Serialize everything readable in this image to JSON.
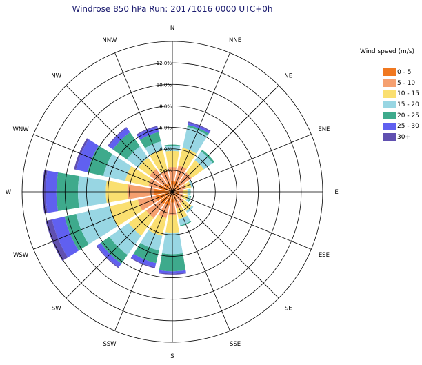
{
  "chart_data": {
    "type": "windrose",
    "title": "Windrose 850 hPa Run: 20171016 0000 UTC+0h",
    "directions": [
      "N",
      "NNE",
      "NE",
      "ENE",
      "E",
      "ESE",
      "SE",
      "SSE",
      "S",
      "SSW",
      "SW",
      "WSW",
      "W",
      "WNW",
      "NW",
      "NNW"
    ],
    "radial_ticks": [
      "2.0%",
      "4.0%",
      "6.0%",
      "8.0%",
      "10.0%",
      "12.0%"
    ],
    "radial_max": 14,
    "legend_title": "Wind speed (m/s)",
    "bins": [
      "0 - 5",
      "5 - 10",
      "10 - 15",
      "15 - 20",
      "20 - 25",
      "25 - 30",
      "30+"
    ],
    "colors": [
      "#f07820",
      "#f5a070",
      "#fadf70",
      "#98d6e3",
      "#3eaa8c",
      "#6060f0",
      "#6050b0"
    ],
    "cumulative_percent": {
      "N": [
        1.0,
        2.3,
        3.8,
        4.3,
        4.4,
        4.4,
        4.4
      ],
      "NNE": [
        1.0,
        2.5,
        4.2,
        6.2,
        6.4,
        6.6,
        6.7
      ],
      "NE": [
        0.8,
        2.2,
        3.6,
        4.6,
        4.8,
        4.8,
        4.8
      ],
      "ENE": [
        0.7,
        1.3,
        1.8,
        2.0,
        2.0,
        2.0,
        2.0
      ],
      "E": [
        0.6,
        1.0,
        1.4,
        1.6,
        1.7,
        1.7,
        1.7
      ],
      "ESE": [
        0.6,
        1.0,
        1.5,
        1.7,
        1.8,
        1.8,
        1.8
      ],
      "SE": [
        0.6,
        1.3,
        2.2,
        2.4,
        2.4,
        2.4,
        2.4
      ],
      "SSE": [
        0.7,
        1.6,
        2.6,
        3.2,
        3.3,
        3.3,
        3.3
      ],
      "S": [
        1.0,
        2.2,
        3.8,
        5.8,
        7.4,
        7.6,
        7.7
      ],
      "SSW": [
        1.3,
        2.5,
        4.2,
        5.6,
        6.8,
        7.2,
        7.3
      ],
      "SW": [
        1.4,
        3.0,
        5.0,
        7.2,
        8.2,
        8.6,
        8.7
      ],
      "WSW": [
        1.6,
        3.3,
        6.0,
        9.2,
        10.3,
        11.5,
        12.1
      ],
      "W": [
        1.7,
        4.2,
        6.2,
        8.8,
        10.8,
        11.8,
        12.1
      ],
      "WNW": [
        1.3,
        2.3,
        4.5,
        6.6,
        8.1,
        9.2,
        9.4
      ],
      "NW": [
        1.0,
        2.6,
        3.9,
        5.2,
        6.8,
        7.3,
        7.4
      ],
      "NNW": [
        0.9,
        2.0,
        4.0,
        4.8,
        5.7,
        6.2,
        6.3
      ]
    }
  }
}
